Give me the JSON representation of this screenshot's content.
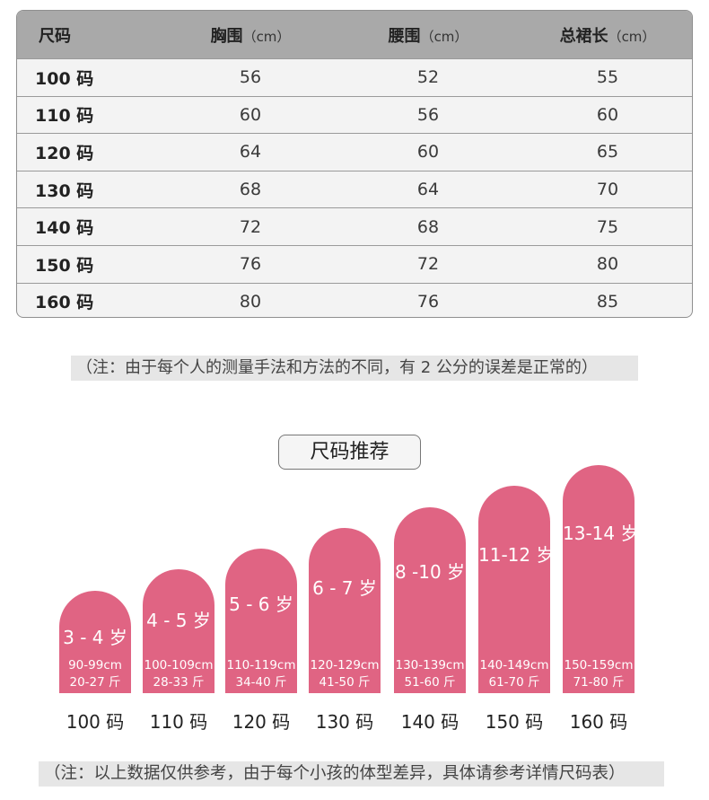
{
  "table": {
    "headers": [
      {
        "label": "尺码",
        "unit": ""
      },
      {
        "label": "胸围",
        "unit": "（cm）"
      },
      {
        "label": "腰围",
        "unit": "（cm）"
      },
      {
        "label": "总裙长",
        "unit": "（cm）"
      }
    ],
    "rows": [
      [
        "100 码",
        "56",
        "52",
        "55"
      ],
      [
        "110 码",
        "60",
        "56",
        "60"
      ],
      [
        "120 码",
        "64",
        "60",
        "65"
      ],
      [
        "130 码",
        "68",
        "64",
        "70"
      ],
      [
        "140 码",
        "72",
        "68",
        "75"
      ],
      [
        "150 码",
        "76",
        "72",
        "80"
      ],
      [
        "160 码",
        "80",
        "76",
        "85"
      ]
    ]
  },
  "note_top": "（注：由于每个人的测量手法和方法的不同，有 2 公分的误差是正常的）",
  "recommend_title": "尺码推荐",
  "recommend": [
    {
      "age": "3 - 4 岁",
      "height": "90-99cm",
      "weight": "20-27 斤",
      "size": "100 码"
    },
    {
      "age": "4 - 5 岁",
      "height": "100-109cm",
      "weight": "28-33 斤",
      "size": "110 码"
    },
    {
      "age": "5 - 6 岁",
      "height": "110-119cm",
      "weight": "34-40 斤",
      "size": "120 码"
    },
    {
      "age": "6 - 7 岁",
      "height": "120-129cm",
      "weight": "41-50 斤",
      "size": "130 码"
    },
    {
      "age": "8 -10 岁",
      "height": "130-139cm",
      "weight": "51-60 斤",
      "size": "140 码"
    },
    {
      "age": "11-12 岁",
      "height": "140-149cm",
      "weight": "61-70 斤",
      "size": "150 码"
    },
    {
      "age": "13-14 岁",
      "height": "150-159cm",
      "weight": "71-80 斤",
      "size": "160 码"
    }
  ],
  "note_bottom": "（注：以上数据仅供参考，由于每个小孩的体型差异，具体请参考详情尺码表）",
  "colors": {
    "pillar": "#e06483",
    "header": "#a9a9a9",
    "note_bg": "#e6e6e6"
  }
}
